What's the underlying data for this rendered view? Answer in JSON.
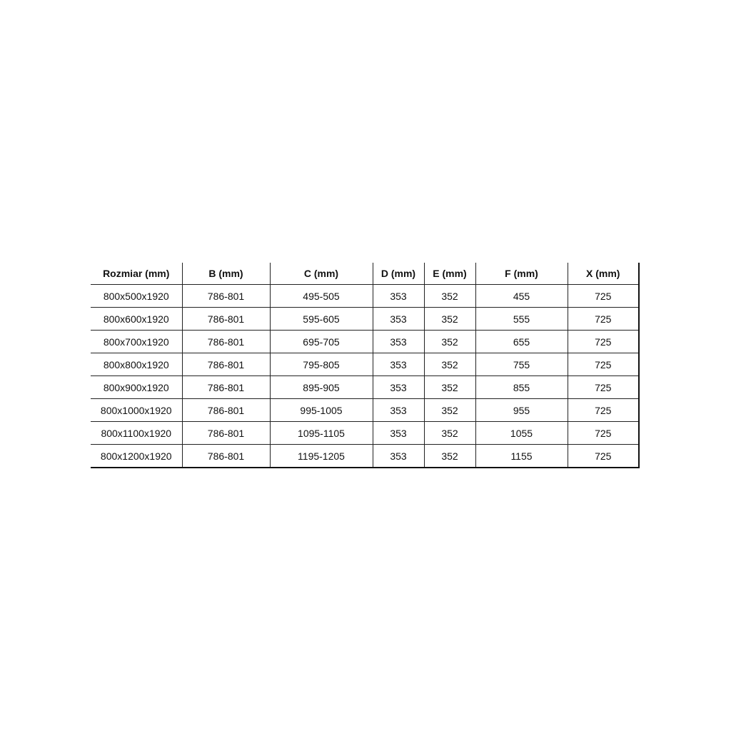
{
  "table": {
    "headers": [
      "Rozmiar (mm)",
      "B (mm)",
      "C (mm)",
      "D (mm)",
      "E (mm)",
      "F (mm)",
      "X (mm)"
    ],
    "rows": [
      [
        "800x500x1920",
        "786-801",
        "495-505",
        "353",
        "352",
        "455",
        "725"
      ],
      [
        "800x600x1920",
        "786-801",
        "595-605",
        "353",
        "352",
        "555",
        "725"
      ],
      [
        "800x700x1920",
        "786-801",
        "695-705",
        "353",
        "352",
        "655",
        "725"
      ],
      [
        "800x800x1920",
        "786-801",
        "795-805",
        "353",
        "352",
        "755",
        "725"
      ],
      [
        "800x900x1920",
        "786-801",
        "895-905",
        "353",
        "352",
        "855",
        "725"
      ],
      [
        "800x1000x1920",
        "786-801",
        "995-1005",
        "353",
        "352",
        "955",
        "725"
      ],
      [
        "800x1100x1920",
        "786-801",
        "1095-1105",
        "353",
        "352",
        "1055",
        "725"
      ],
      [
        "800x1200x1920",
        "786-801",
        "1195-1205",
        "353",
        "352",
        "1155",
        "725"
      ]
    ]
  }
}
